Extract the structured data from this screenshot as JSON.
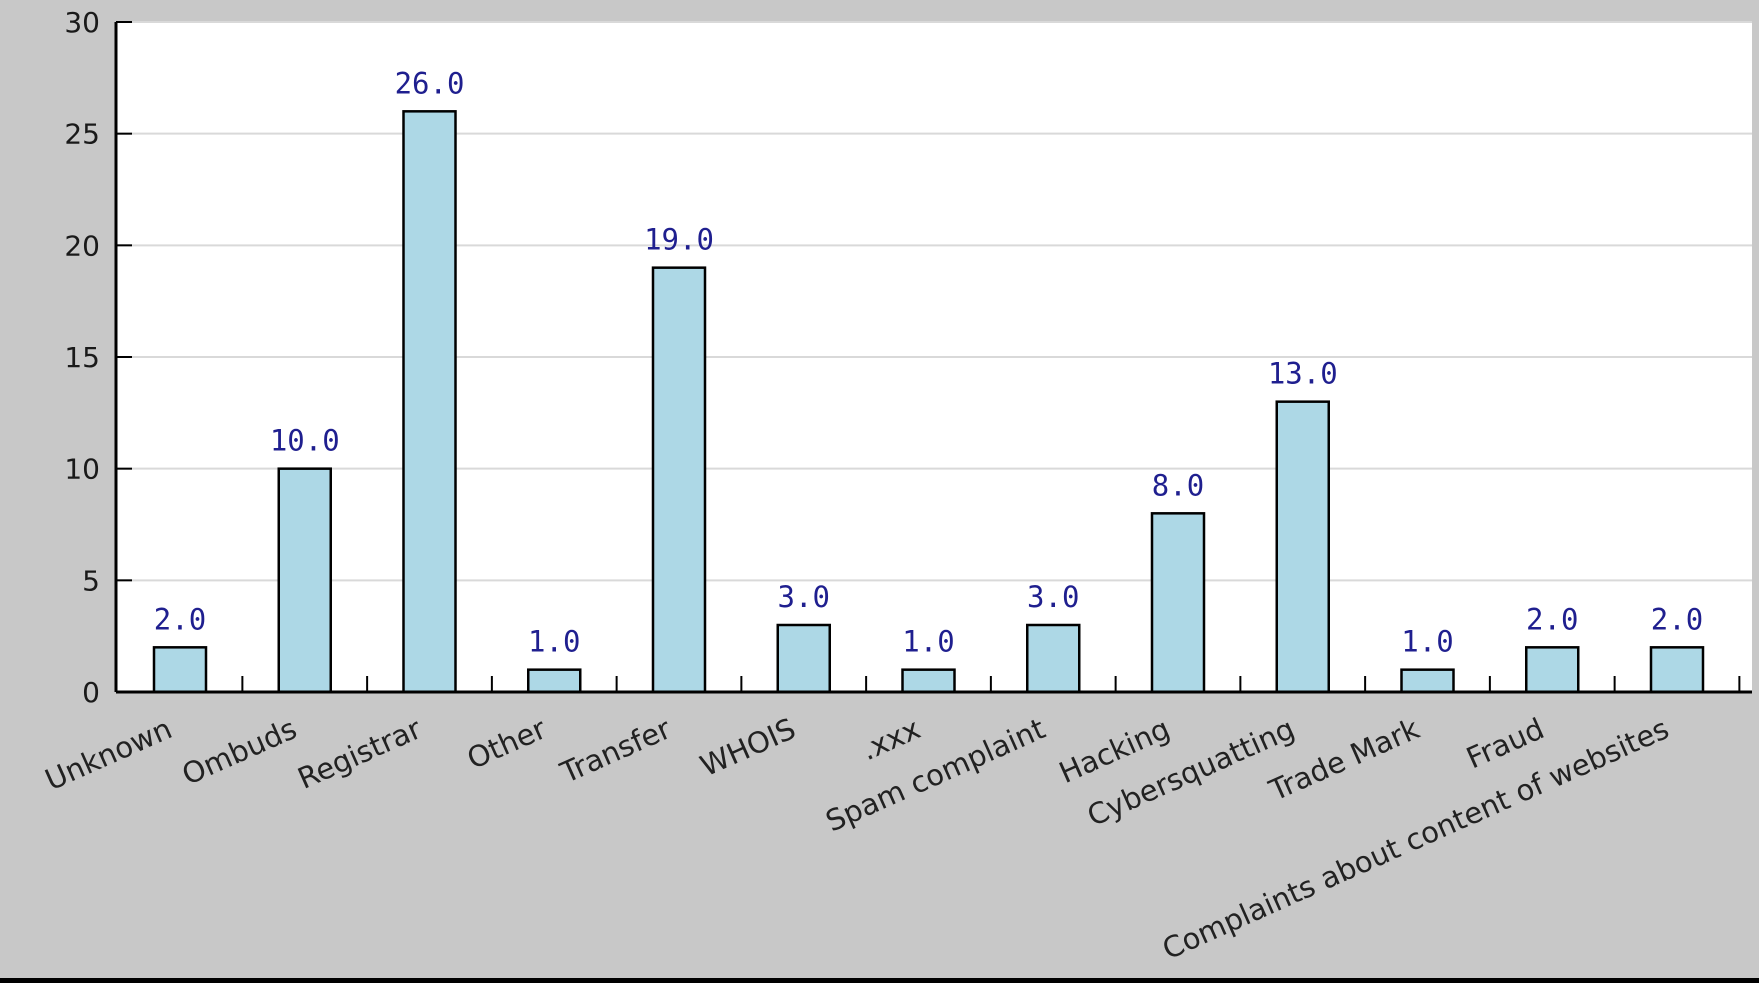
{
  "chart_data": {
    "type": "bar",
    "categories": [
      "Unknown",
      "Ombuds",
      "Registrar",
      "Other",
      "Transfer",
      "WHOIS",
      ".xxx",
      "Spam complaint",
      "Hacking",
      "Cybersquatting",
      "Trade Mark",
      "Fraud",
      "Complaints about content of websites"
    ],
    "values": [
      2,
      10,
      26,
      1,
      19,
      3,
      1,
      3,
      8,
      13,
      1,
      2,
      2
    ],
    "value_labels": [
      "2.0",
      "10.0",
      "26.0",
      "1.0",
      "19.0",
      "3.0",
      "1.0",
      "3.0",
      "8.0",
      "13.0",
      "1.0",
      "2.0",
      "2.0"
    ],
    "y_ticks": [
      "0",
      "5",
      "10",
      "15",
      "20",
      "25",
      "30"
    ],
    "ylim": [
      0,
      30
    ],
    "grid": true,
    "title": "",
    "xlabel": "",
    "ylabel": "",
    "colors": {
      "bar_fill": "#add8e6",
      "bar_stroke": "#000000",
      "plot_background": "#ffffff",
      "outer_background": "#c8c8c8",
      "grid": "#d9d9d9",
      "value_text": "#1f1f8f"
    }
  }
}
